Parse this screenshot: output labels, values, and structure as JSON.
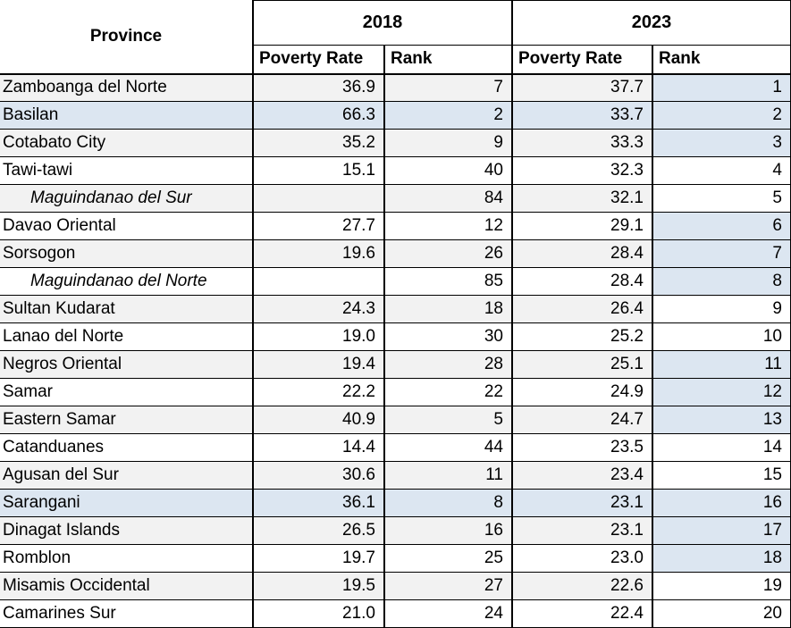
{
  "header": {
    "province_label": "Province",
    "year_2018": "2018",
    "year_2023": "2023",
    "poverty_rate_label": "Poverty Rate",
    "rank_label": "Rank"
  },
  "colors": {
    "row_stripe_gray": "#F2F2F2",
    "highlight_blue": "#DCE6F1",
    "border_black": "#000000",
    "background_white": "#FFFFFF"
  },
  "rows": [
    {
      "province": "Zamboanga del Norte",
      "indent": false,
      "pr2018": "36.9",
      "rank2018": "7",
      "pr2023": "37.7",
      "rank2023": "1",
      "row_bg": "gray",
      "rank2023_bg": "blue"
    },
    {
      "province": "Basilan",
      "indent": false,
      "pr2018": "66.3",
      "rank2018": "2",
      "pr2023": "33.7",
      "rank2023": "2",
      "row_bg": "blue",
      "rank2023_bg": "blue"
    },
    {
      "province": "Cotabato City",
      "indent": false,
      "pr2018": "35.2",
      "rank2018": "9",
      "pr2023": "33.3",
      "rank2023": "3",
      "row_bg": "gray",
      "rank2023_bg": "blue"
    },
    {
      "province": "Tawi-tawi",
      "indent": false,
      "pr2018": "15.1",
      "rank2018": "40",
      "pr2023": "32.3",
      "rank2023": "4",
      "row_bg": "white",
      "rank2023_bg": "white"
    },
    {
      "province": "Maguindanao del Sur",
      "indent": true,
      "pr2018": "",
      "rank2018": "84",
      "pr2023": "32.1",
      "rank2023": "5",
      "row_bg": "gray",
      "rank2023_bg": "white"
    },
    {
      "province": "Davao Oriental",
      "indent": false,
      "pr2018": "27.7",
      "rank2018": "12",
      "pr2023": "29.1",
      "rank2023": "6",
      "row_bg": "white",
      "rank2023_bg": "blue"
    },
    {
      "province": "Sorsogon",
      "indent": false,
      "pr2018": "19.6",
      "rank2018": "26",
      "pr2023": "28.4",
      "rank2023": "7",
      "row_bg": "gray",
      "rank2023_bg": "blue"
    },
    {
      "province": "Maguindanao del Norte",
      "indent": true,
      "pr2018": "",
      "rank2018": "85",
      "pr2023": "28.4",
      "rank2023": "8",
      "row_bg": "white",
      "rank2023_bg": "blue"
    },
    {
      "province": "Sultan Kudarat",
      "indent": false,
      "pr2018": "24.3",
      "rank2018": "18",
      "pr2023": "26.4",
      "rank2023": "9",
      "row_bg": "gray",
      "rank2023_bg": "white"
    },
    {
      "province": "Lanao del Norte",
      "indent": false,
      "pr2018": "19.0",
      "rank2018": "30",
      "pr2023": "25.2",
      "rank2023": "10",
      "row_bg": "white",
      "rank2023_bg": "white"
    },
    {
      "province": "Negros Oriental",
      "indent": false,
      "pr2018": "19.4",
      "rank2018": "28",
      "pr2023": "25.1",
      "rank2023": "11",
      "row_bg": "gray",
      "rank2023_bg": "blue"
    },
    {
      "province": "Samar",
      "indent": false,
      "pr2018": "22.2",
      "rank2018": "22",
      "pr2023": "24.9",
      "rank2023": "12",
      "row_bg": "white",
      "rank2023_bg": "blue"
    },
    {
      "province": "Eastern Samar",
      "indent": false,
      "pr2018": "40.9",
      "rank2018": "5",
      "pr2023": "24.7",
      "rank2023": "13",
      "row_bg": "gray",
      "rank2023_bg": "blue"
    },
    {
      "province": "Catanduanes",
      "indent": false,
      "pr2018": "14.4",
      "rank2018": "44",
      "pr2023": "23.5",
      "rank2023": "14",
      "row_bg": "white",
      "rank2023_bg": "white"
    },
    {
      "province": "Agusan del Sur",
      "indent": false,
      "pr2018": "30.6",
      "rank2018": "11",
      "pr2023": "23.4",
      "rank2023": "15",
      "row_bg": "gray",
      "rank2023_bg": "white"
    },
    {
      "province": "Sarangani",
      "indent": false,
      "pr2018": "36.1",
      "rank2018": "8",
      "pr2023": "23.1",
      "rank2023": "16",
      "row_bg": "blue",
      "rank2023_bg": "blue"
    },
    {
      "province": "Dinagat Islands",
      "indent": false,
      "pr2018": "26.5",
      "rank2018": "16",
      "pr2023": "23.1",
      "rank2023": "17",
      "row_bg": "gray",
      "rank2023_bg": "blue"
    },
    {
      "province": "Romblon",
      "indent": false,
      "pr2018": "19.7",
      "rank2018": "25",
      "pr2023": "23.0",
      "rank2023": "18",
      "row_bg": "white",
      "rank2023_bg": "blue"
    },
    {
      "province": "Misamis Occidental",
      "indent": false,
      "pr2018": "19.5",
      "rank2018": "27",
      "pr2023": "22.6",
      "rank2023": "19",
      "row_bg": "gray",
      "rank2023_bg": "white"
    },
    {
      "province": "Camarines Sur",
      "indent": false,
      "pr2018": "21.0",
      "rank2018": "24",
      "pr2023": "22.4",
      "rank2023": "20",
      "row_bg": "white",
      "rank2023_bg": "white"
    }
  ],
  "chart_data": {
    "type": "table",
    "title": "",
    "columns": [
      "Province",
      "2018 Poverty Rate",
      "2018 Rank",
      "2023 Poverty Rate",
      "2023 Rank"
    ],
    "rows": [
      [
        "Zamboanga del Norte",
        36.9,
        7,
        37.7,
        1
      ],
      [
        "Basilan",
        66.3,
        2,
        33.7,
        2
      ],
      [
        "Cotabato City",
        35.2,
        9,
        33.3,
        3
      ],
      [
        "Tawi-tawi",
        15.1,
        40,
        32.3,
        4
      ],
      [
        "Maguindanao del Sur",
        null,
        84,
        32.1,
        5
      ],
      [
        "Davao Oriental",
        27.7,
        12,
        29.1,
        6
      ],
      [
        "Sorsogon",
        19.6,
        26,
        28.4,
        7
      ],
      [
        "Maguindanao del Norte",
        null,
        85,
        28.4,
        8
      ],
      [
        "Sultan Kudarat",
        24.3,
        18,
        26.4,
        9
      ],
      [
        "Lanao del Norte",
        19.0,
        30,
        25.2,
        10
      ],
      [
        "Negros Oriental",
        19.4,
        28,
        25.1,
        11
      ],
      [
        "Samar",
        22.2,
        22,
        24.9,
        12
      ],
      [
        "Eastern Samar",
        40.9,
        5,
        24.7,
        13
      ],
      [
        "Catanduanes",
        14.4,
        44,
        23.5,
        14
      ],
      [
        "Agusan del Sur",
        30.6,
        11,
        23.4,
        15
      ],
      [
        "Sarangani",
        36.1,
        8,
        23.1,
        16
      ],
      [
        "Dinagat Islands",
        26.5,
        16,
        23.1,
        17
      ],
      [
        "Romblon",
        19.7,
        25,
        23.0,
        18
      ],
      [
        "Misamis Occidental",
        19.5,
        27,
        22.6,
        19
      ],
      [
        "Camarines Sur",
        21.0,
        24,
        22.4,
        20
      ]
    ]
  }
}
